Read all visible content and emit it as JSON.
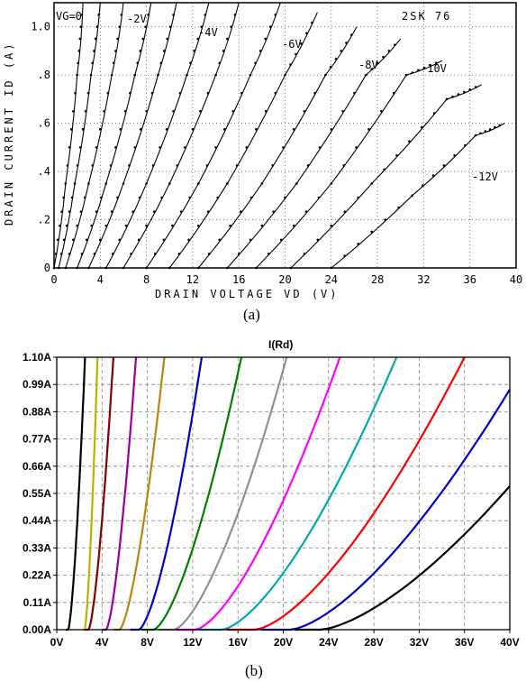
{
  "captions": {
    "a": "(a)",
    "b": "(b)"
  },
  "chart_data": [
    {
      "type": "line",
      "panel": "(a)",
      "device_label": "2SK 76",
      "xlabel": "DRAIN  VOLTAGE  VD  (V)",
      "ylabel": "DRAIN  CURRENT  ID  (A)",
      "xlim": [
        0,
        40
      ],
      "ylim": [
        0,
        1.1
      ],
      "x_ticks": [
        "0",
        "4",
        "8",
        "12",
        "16",
        "20",
        "24",
        "28",
        "32",
        "36",
        "40"
      ],
      "y_ticks": [
        "0",
        ".2",
        ".4",
        ".6",
        ".8",
        "1.0"
      ],
      "grid": true,
      "markers": "dots",
      "series_labels": [
        "VG=0",
        "-2V",
        "-4V",
        "-6V",
        "-8V",
        "-10V",
        "-12V"
      ],
      "series": [
        {
          "curve": [
            [
              0.0,
              0.0
            ],
            [
              1.0,
              0.35
            ],
            [
              2.0,
              0.8
            ],
            [
              2.5,
              1.1
            ]
          ]
        },
        {
          "curve": [
            [
              0.4,
              0.0
            ],
            [
              1.8,
              0.35
            ],
            [
              3.2,
              0.8
            ],
            [
              4.0,
              1.1
            ]
          ]
        },
        {
          "curve": [
            [
              1.0,
              0.0
            ],
            [
              3.0,
              0.35
            ],
            [
              5.0,
              0.8
            ],
            [
              6.0,
              1.1
            ]
          ]
        },
        {
          "curve": [
            [
              2.0,
              0.0
            ],
            [
              4.5,
              0.35
            ],
            [
              7.0,
              0.8
            ],
            [
              8.4,
              1.1
            ]
          ]
        },
        {
          "curve": [
            [
              3.0,
              0.0
            ],
            [
              6.0,
              0.35
            ],
            [
              9.0,
              0.8
            ],
            [
              10.6,
              1.1
            ]
          ]
        },
        {
          "curve": [
            [
              4.5,
              0.0
            ],
            [
              8.0,
              0.35
            ],
            [
              11.5,
              0.8
            ],
            [
              13.4,
              1.1
            ]
          ]
        },
        {
          "curve": [
            [
              6.0,
              0.0
            ],
            [
              10.0,
              0.35
            ],
            [
              14.0,
              0.8
            ],
            [
              16.0,
              1.1
            ]
          ]
        },
        {
          "curve": [
            [
              8.0,
              0.0
            ],
            [
              12.5,
              0.35
            ],
            [
              17.0,
              0.8
            ],
            [
              19.6,
              1.1
            ]
          ]
        },
        {
          "curve": [
            [
              10.0,
              0.0
            ],
            [
              15.0,
              0.35
            ],
            [
              20.0,
              0.8
            ],
            [
              22.8,
              1.06
            ]
          ]
        },
        {
          "curve": [
            [
              12.5,
              0.0
            ],
            [
              18.0,
              0.35
            ],
            [
              23.5,
              0.8
            ],
            [
              26.2,
              1.0
            ]
          ]
        },
        {
          "curve": [
            [
              15.0,
              0.0
            ],
            [
              21.0,
              0.35
            ],
            [
              27.0,
              0.8
            ],
            [
              30.0,
              0.95
            ]
          ]
        },
        {
          "curve": [
            [
              17.5,
              0.0
            ],
            [
              24.0,
              0.35
            ],
            [
              30.5,
              0.8
            ],
            [
              33.6,
              0.86
            ]
          ]
        },
        {
          "curve": [
            [
              20.5,
              0.0
            ],
            [
              27.5,
              0.35
            ],
            [
              34.0,
              0.7
            ],
            [
              37.0,
              0.76
            ]
          ]
        },
        {
          "curve": [
            [
              24.0,
              0.0
            ],
            [
              31.0,
              0.3
            ],
            [
              36.5,
              0.55
            ],
            [
              39.0,
              0.6
            ]
          ]
        }
      ]
    },
    {
      "type": "line",
      "panel": "(b)",
      "title": "I(Rd)",
      "xlim": [
        0,
        40
      ],
      "ylim": [
        0,
        1.1
      ],
      "x_ticks": [
        "0V",
        "4V",
        "8V",
        "12V",
        "16V",
        "20V",
        "24V",
        "28V",
        "32V",
        "36V",
        "40V"
      ],
      "y_ticks": [
        "0.00A",
        "0.11A",
        "0.22A",
        "0.33A",
        "0.44A",
        "0.55A",
        "0.66A",
        "0.77A",
        "0.88A",
        "0.99A",
        "1.10A"
      ],
      "grid": "dashed",
      "series": [
        {
          "color": "#000000",
          "start": 0.8,
          "end_x": 2.5,
          "end_y": 1.1
        },
        {
          "color": "#b5b500",
          "start": 2.3,
          "end_x": 3.6,
          "end_y": 1.1
        },
        {
          "color": "#800000",
          "start": 2.5,
          "end_x": 5.0,
          "end_y": 1.1
        },
        {
          "color": "#990099",
          "start": 4.0,
          "end_x": 7.0,
          "end_y": 1.1
        },
        {
          "color": "#b8860b",
          "start": 5.0,
          "end_x": 9.5,
          "end_y": 1.1
        },
        {
          "color": "#0000cc",
          "start": 6.5,
          "end_x": 12.8,
          "end_y": 1.1
        },
        {
          "color": "#008000",
          "start": 7.5,
          "end_x": 16.3,
          "end_y": 1.1
        },
        {
          "color": "#909090",
          "start": 9.0,
          "end_x": 20.3,
          "end_y": 1.1
        },
        {
          "color": "#ff00ff",
          "start": 10.5,
          "end_x": 25.0,
          "end_y": 1.1
        },
        {
          "color": "#00aaaa",
          "start": 12.5,
          "end_x": 30.0,
          "end_y": 1.1
        },
        {
          "color": "#ff0000",
          "start": 15.0,
          "end_x": 36.0,
          "end_y": 1.1
        },
        {
          "color": "#0000cc",
          "start": 18.0,
          "end_x": 40.0,
          "end_y": 0.97
        },
        {
          "color": "#000000",
          "start": 21.0,
          "end_x": 40.0,
          "end_y": 0.58
        }
      ]
    }
  ]
}
